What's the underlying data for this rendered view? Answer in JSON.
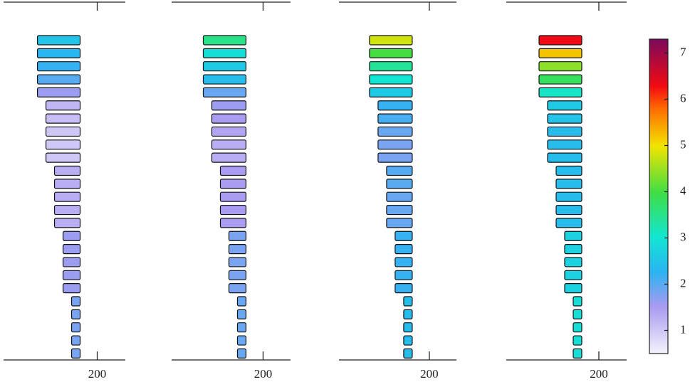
{
  "chart_data": {
    "type": "block-stack",
    "panels": [
      {
        "values": [
          2.5,
          2.3,
          2.2,
          2.0,
          1.6,
          1.2,
          1.1,
          1.0,
          1.0,
          1.0,
          1.3,
          1.3,
          1.3,
          1.3,
          1.3,
          1.6,
          1.6,
          1.6,
          1.6,
          1.6,
          1.8,
          1.8,
          1.8,
          1.8,
          1.8
        ],
        "xlim": [
          0,
          260
        ],
        "xticks": [
          200
        ]
      },
      {
        "values": [
          3.5,
          2.9,
          2.6,
          2.4,
          1.9,
          1.6,
          1.5,
          1.4,
          1.3,
          1.3,
          1.5,
          1.5,
          1.5,
          1.5,
          1.5,
          1.8,
          1.8,
          1.8,
          1.8,
          1.8,
          1.9,
          1.9,
          1.9,
          1.9,
          1.9
        ],
        "xlim": [
          0,
          260
        ],
        "xticks": [
          200
        ]
      },
      {
        "values": [
          4.8,
          4.0,
          3.4,
          3.0,
          2.6,
          2.2,
          2.1,
          1.9,
          1.8,
          1.8,
          2.0,
          2.0,
          1.9,
          1.9,
          1.9,
          2.2,
          2.2,
          2.2,
          2.2,
          2.2,
          2.4,
          2.4,
          2.4,
          2.4,
          2.4
        ],
        "xlim": [
          0,
          260
        ],
        "xticks": [
          200
        ]
      },
      {
        "values": [
          6.3,
          5.2,
          4.4,
          3.8,
          3.1,
          2.6,
          2.5,
          2.4,
          2.4,
          2.4,
          2.4,
          2.4,
          2.4,
          2.4,
          2.4,
          2.7,
          2.7,
          2.7,
          2.7,
          2.7,
          2.9,
          2.9,
          2.9,
          2.9,
          2.9
        ],
        "xlim": [
          0,
          260
        ],
        "xticks": [
          200
        ]
      }
    ],
    "clim": [
      0.5,
      7.3
    ],
    "cticks": [
      1,
      2,
      3,
      4,
      5,
      6,
      7
    ]
  }
}
